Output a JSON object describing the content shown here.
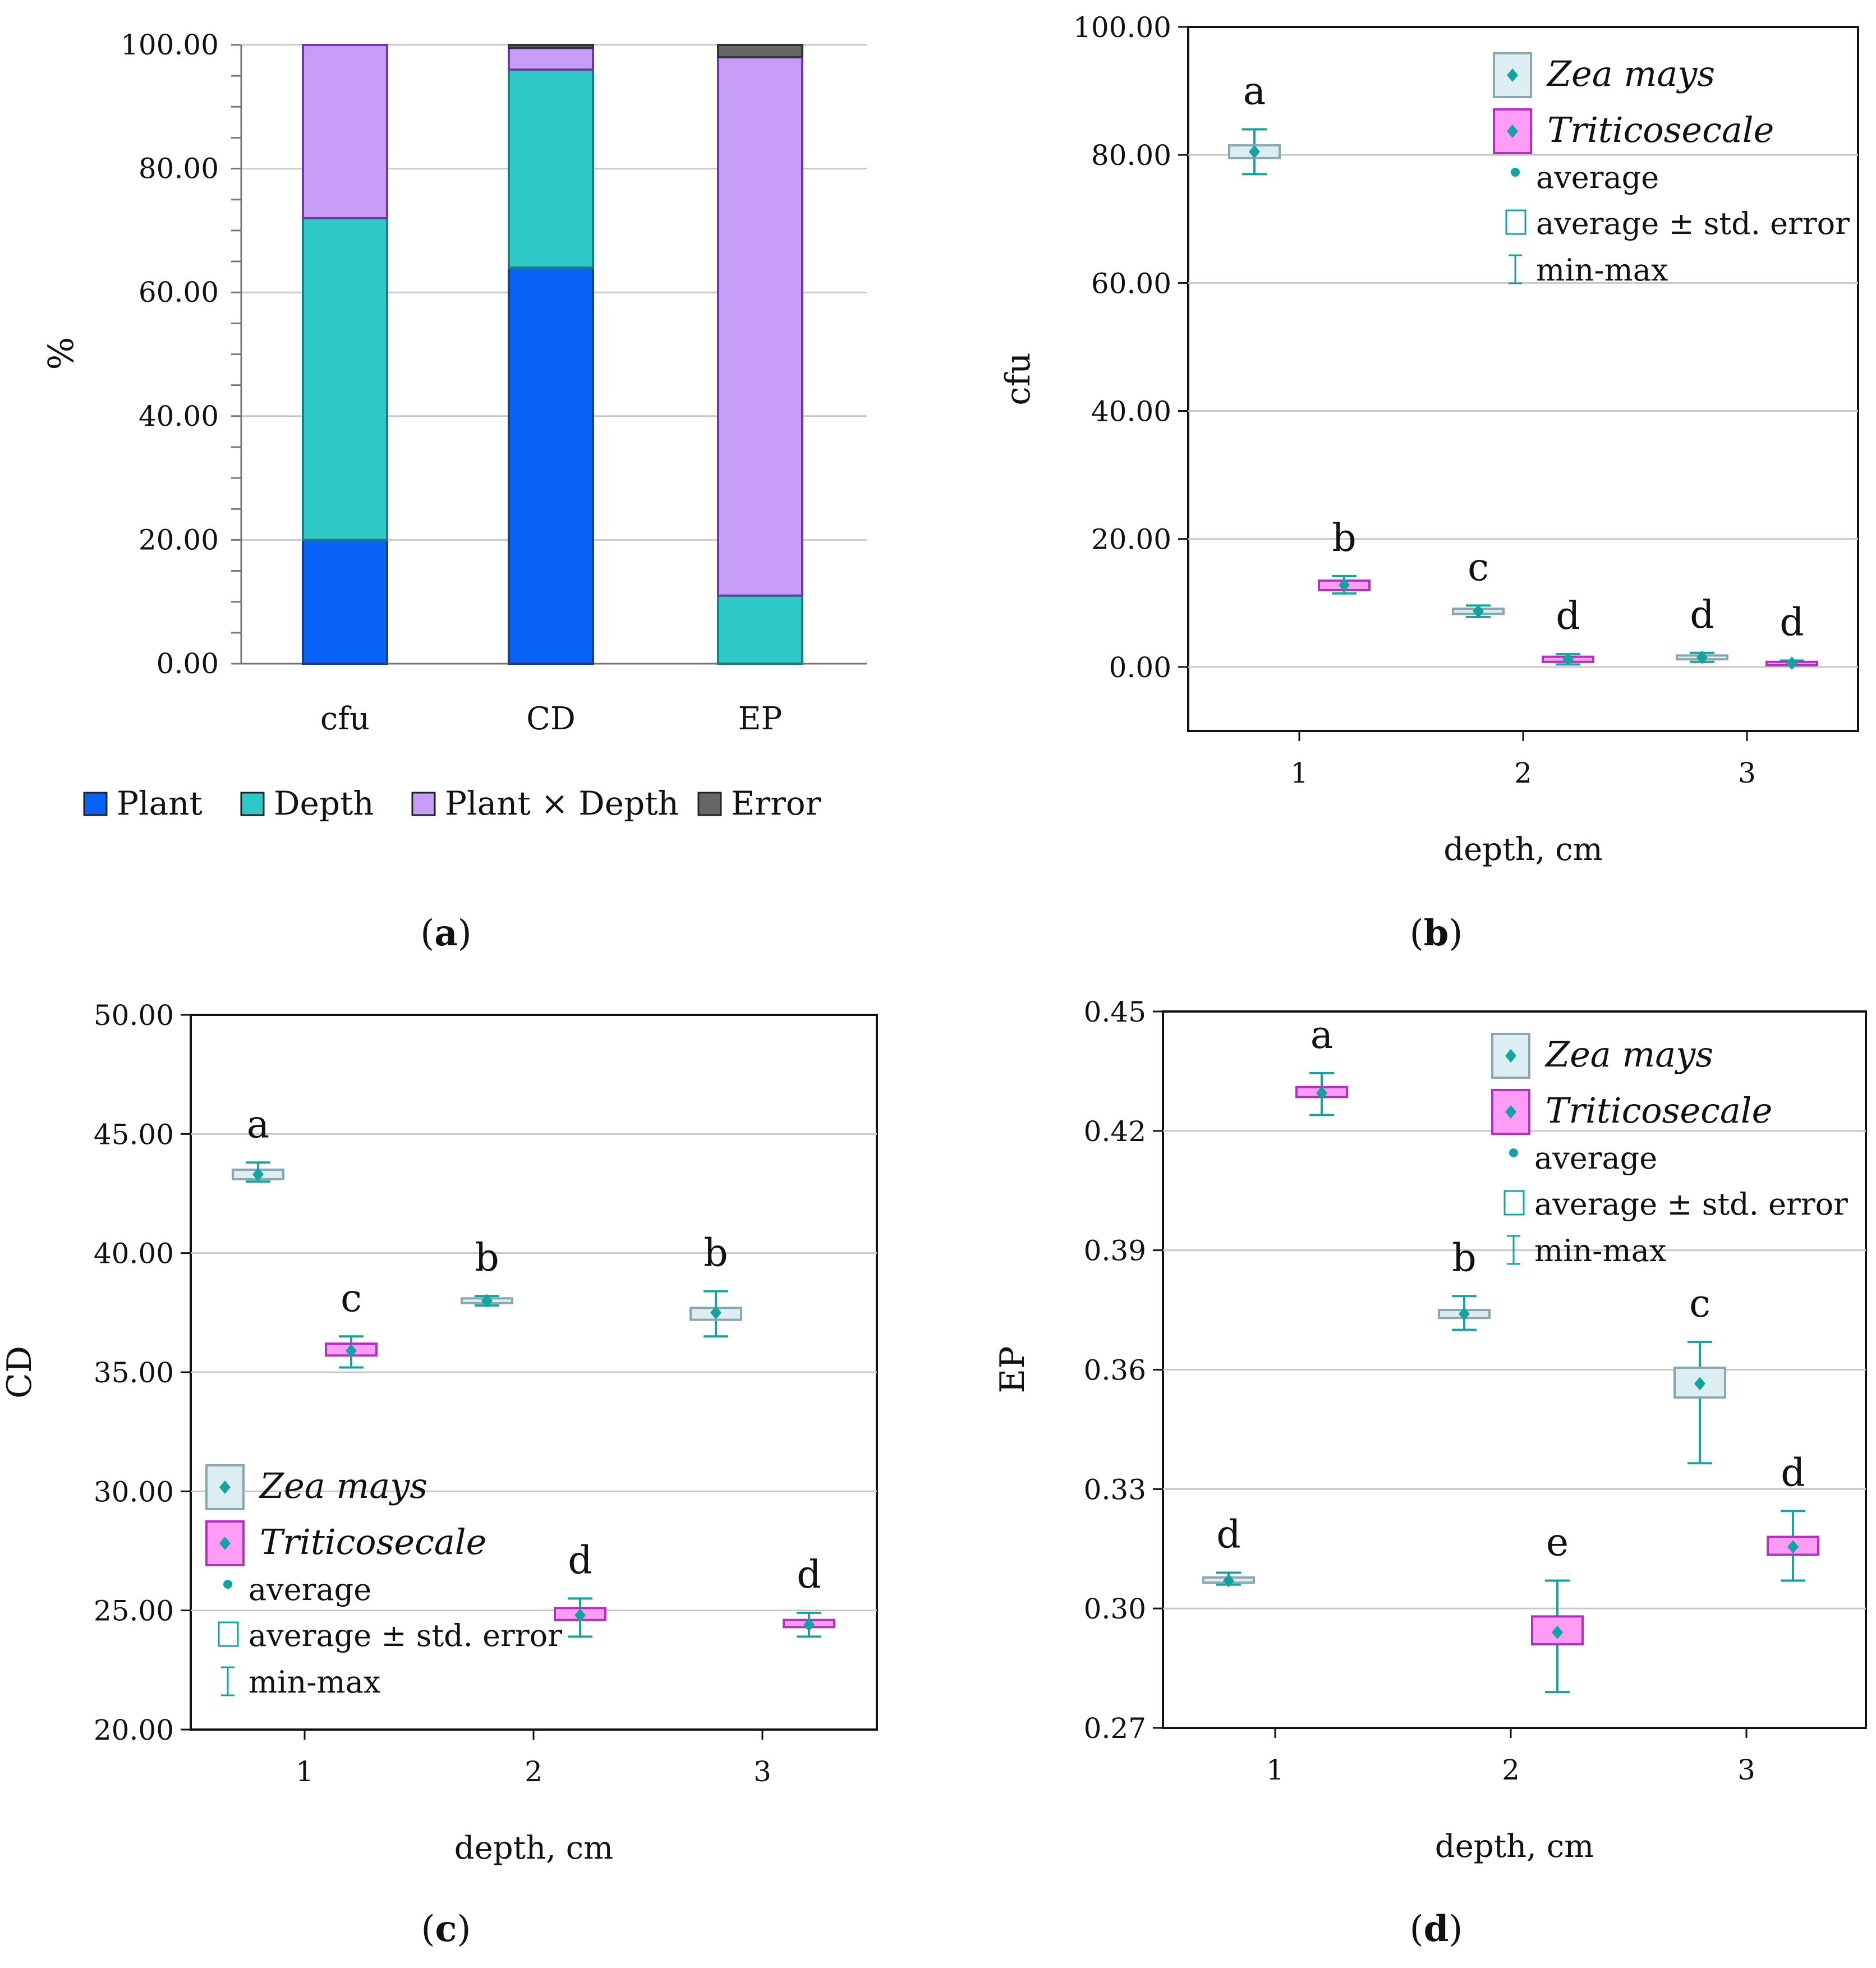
{
  "colors": {
    "plant": "#0762F8",
    "depth": "#2EC8C8",
    "interaction": "#C79CF7",
    "error": "#666666",
    "zea_fill": "#DDEEF2",
    "zea_edge": "#8AA6AE",
    "tri_fill": "#FF9CF5",
    "tri_edge": "#B030C0",
    "whisker": "#13A3A0",
    "grid": "#C8C8C8"
  },
  "legend_common": {
    "average": "average",
    "se": "average ± std. error",
    "minmax": "min-max"
  },
  "chart_data": [
    {
      "id": "a",
      "type": "bar",
      "stacked": true,
      "caption_letter": "a",
      "ylabel": "%",
      "ylim": [
        0,
        100
      ],
      "yticks": [
        "0.00",
        "20.00",
        "40.00",
        "60.00",
        "80.00",
        "100.00"
      ],
      "categories": [
        "cfu",
        "CD",
        "EP"
      ],
      "series": [
        {
          "name": "Plant",
          "values": [
            20,
            64,
            0
          ]
        },
        {
          "name": "Depth",
          "values": [
            52,
            32,
            11
          ]
        },
        {
          "name": "Plant × Depth",
          "values": [
            28,
            3.5,
            87
          ]
        },
        {
          "name": "Error",
          "values": [
            0,
            0.5,
            2
          ]
        }
      ]
    },
    {
      "id": "b",
      "type": "boxplot",
      "caption_letter": "b",
      "ylabel": "cfu",
      "xlabel": "depth, cm",
      "ylim": [
        -10,
        100
      ],
      "yticks": [
        "0.00",
        "20.00",
        "40.00",
        "60.00",
        "80.00",
        "100.00"
      ],
      "xticks": [
        "1",
        "2",
        "3"
      ],
      "legend": {
        "zea": "Zea mays",
        "tri": "Triticosecale"
      },
      "points": [
        {
          "series": "Zea mays",
          "depth": 1,
          "mean": 80.5,
          "se_low": 79.5,
          "se_high": 81.5,
          "min": 77,
          "max": 84,
          "letter": "a"
        },
        {
          "series": "Triticosecale",
          "depth": 1,
          "mean": 12.8,
          "se_low": 12.0,
          "se_high": 13.5,
          "min": 11.5,
          "max": 14.2,
          "letter": "b"
        },
        {
          "series": "Zea mays",
          "depth": 2,
          "mean": 8.7,
          "se_low": 8.3,
          "se_high": 9.1,
          "min": 7.8,
          "max": 9.6,
          "letter": "c"
        },
        {
          "series": "Triticosecale",
          "depth": 2,
          "mean": 1.2,
          "se_low": 0.8,
          "se_high": 1.6,
          "min": 0.4,
          "max": 2.0,
          "letter": "d"
        },
        {
          "series": "Zea mays",
          "depth": 3,
          "mean": 1.5,
          "se_low": 1.2,
          "se_high": 1.8,
          "min": 0.8,
          "max": 2.2,
          "letter": "d"
        },
        {
          "series": "Triticosecale",
          "depth": 3,
          "mean": 0.6,
          "se_low": 0.4,
          "se_high": 0.8,
          "min": 0.3,
          "max": 1.0,
          "letter": "d"
        }
      ]
    },
    {
      "id": "c",
      "type": "boxplot",
      "caption_letter": "c",
      "ylabel": "CD",
      "xlabel": "depth, cm",
      "ylim": [
        20,
        50
      ],
      "yticks": [
        "20.00",
        "25.00",
        "30.00",
        "35.00",
        "40.00",
        "45.00",
        "50.00"
      ],
      "xticks": [
        "1",
        "2",
        "3"
      ],
      "legend": {
        "zea": "Zea mays",
        "tri": "Triticosecale"
      },
      "points": [
        {
          "series": "Zea mays",
          "depth": 1,
          "mean": 43.3,
          "se_low": 43.1,
          "se_high": 43.5,
          "min": 43.0,
          "max": 43.8,
          "letter": "a"
        },
        {
          "series": "Triticosecale",
          "depth": 1,
          "mean": 35.9,
          "se_low": 35.7,
          "se_high": 36.2,
          "min": 35.2,
          "max": 36.5,
          "letter": "c"
        },
        {
          "series": "Zea mays",
          "depth": 2,
          "mean": 38.0,
          "se_low": 37.9,
          "se_high": 38.1,
          "min": 37.8,
          "max": 38.2,
          "letter": "b"
        },
        {
          "series": "Triticosecale",
          "depth": 2,
          "mean": 24.8,
          "se_low": 24.6,
          "se_high": 25.1,
          "min": 23.9,
          "max": 25.5,
          "letter": "d"
        },
        {
          "series": "Zea mays",
          "depth": 3,
          "mean": 37.5,
          "se_low": 37.2,
          "se_high": 37.7,
          "min": 36.5,
          "max": 38.4,
          "letter": "b"
        },
        {
          "series": "Triticosecale",
          "depth": 3,
          "mean": 24.4,
          "se_low": 24.3,
          "se_high": 24.6,
          "min": 23.9,
          "max": 24.9,
          "letter": "d"
        }
      ]
    },
    {
      "id": "d",
      "type": "boxplot",
      "caption_letter": "d",
      "ylabel": "EP",
      "xlabel": "depth, cm",
      "ylim": [
        0.27,
        0.45
      ],
      "yticks": [
        "0.27",
        "0.30",
        "0.33",
        "0.36",
        "0.39",
        "0.42",
        "0.45"
      ],
      "xticks": [
        "1",
        "2",
        "3"
      ],
      "legend": {
        "zea": "Zea mays",
        "tri": "Triticosecale"
      },
      "points": [
        {
          "series": "Zea mays",
          "depth": 1,
          "mean": 0.307,
          "se_low": 0.3065,
          "se_high": 0.3078,
          "min": 0.306,
          "max": 0.309,
          "letter": "d"
        },
        {
          "series": "Triticosecale",
          "depth": 1,
          "mean": 0.4295,
          "se_low": 0.4285,
          "se_high": 0.431,
          "min": 0.424,
          "max": 0.4345,
          "letter": "a"
        },
        {
          "series": "Zea mays",
          "depth": 2,
          "mean": 0.374,
          "se_low": 0.373,
          "se_high": 0.375,
          "min": 0.37,
          "max": 0.3785,
          "letter": "b"
        },
        {
          "series": "Triticosecale",
          "depth": 2,
          "mean": 0.294,
          "se_low": 0.291,
          "se_high": 0.298,
          "min": 0.279,
          "max": 0.307,
          "letter": "e"
        },
        {
          "series": "Zea mays",
          "depth": 3,
          "mean": 0.3565,
          "se_low": 0.353,
          "se_high": 0.3605,
          "min": 0.3365,
          "max": 0.367,
          "letter": "c"
        },
        {
          "series": "Triticosecale",
          "depth": 3,
          "mean": 0.3155,
          "se_low": 0.3135,
          "se_high": 0.318,
          "min": 0.307,
          "max": 0.3245,
          "letter": "d"
        }
      ]
    }
  ]
}
